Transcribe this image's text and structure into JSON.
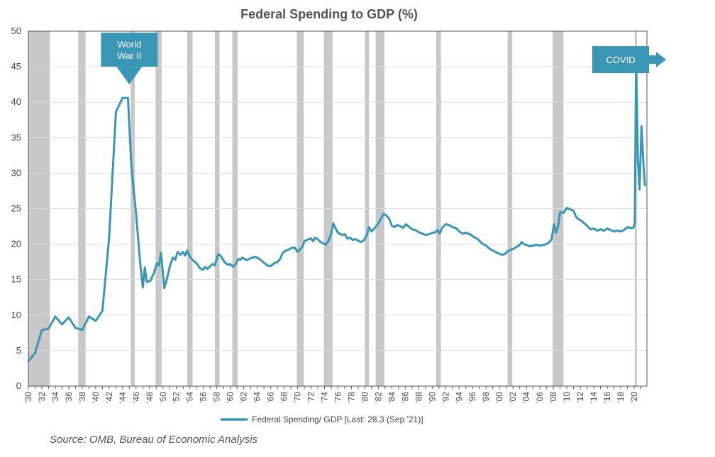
{
  "chart_data": {
    "type": "line",
    "title": "Federal Spending to GDP (%)",
    "xlabel": "",
    "ylabel": "",
    "xlim": [
      1930,
      2021.9
    ],
    "ylim": [
      0,
      50
    ],
    "yticks": [
      0,
      5,
      10,
      15,
      20,
      25,
      30,
      35,
      40,
      45,
      50
    ],
    "xtick_labels": [
      "'30",
      "'32",
      "'34",
      "'36",
      "'38",
      "'40",
      "'42",
      "'44",
      "'46",
      "'48",
      "'50",
      "'52",
      "'54",
      "'56",
      "'58",
      "'60",
      "'62",
      "'64",
      "'66",
      "'68",
      "'70",
      "'72",
      "'74",
      "'76",
      "'78",
      "'80",
      "'82",
      "'84",
      "'86",
      "'88",
      "'90",
      "'92",
      "'94",
      "'96",
      "'98",
      "'00",
      "'02",
      "'04",
      "'06",
      "'08",
      "'10",
      "'12",
      "'14",
      "'16",
      "'18",
      "'20"
    ],
    "grid": true,
    "legend_position": "bottom-center",
    "series": [
      {
        "name": "Federal Spending/ GDP [Last: 28.3 (Sep '21)]",
        "color": "#3a96b5",
        "points": [
          [
            1930,
            3.5
          ],
          [
            1931,
            4.7
          ],
          [
            1932,
            7.9
          ],
          [
            1933,
            8.1
          ],
          [
            1934,
            9.8
          ],
          [
            1935,
            8.7
          ],
          [
            1936,
            9.7
          ],
          [
            1937,
            8.2
          ],
          [
            1938,
            7.9
          ],
          [
            1939,
            9.8
          ],
          [
            1940,
            9.2
          ],
          [
            1941,
            10.6
          ],
          [
            1942,
            21.0
          ],
          [
            1943,
            38.6
          ],
          [
            1944,
            40.6
          ],
          [
            1944.8,
            40.6
          ],
          [
            1945.3,
            31.0
          ],
          [
            1946,
            24.3
          ],
          [
            1946.6,
            17.5
          ],
          [
            1947,
            13.9
          ],
          [
            1947.3,
            16.7
          ],
          [
            1947.6,
            14.7
          ],
          [
            1948.1,
            14.8
          ],
          [
            1948.6,
            15.8
          ],
          [
            1949.1,
            17.3
          ],
          [
            1949.4,
            17.0
          ],
          [
            1949.7,
            18.8
          ],
          [
            1950.2,
            13.8
          ],
          [
            1950.6,
            15.2
          ],
          [
            1951.1,
            17.2
          ],
          [
            1951.5,
            18.1
          ],
          [
            1951.8,
            17.8
          ],
          [
            1952.2,
            18.9
          ],
          [
            1952.6,
            18.5
          ],
          [
            1953,
            18.9
          ],
          [
            1953.3,
            18.4
          ],
          [
            1953.6,
            19.1
          ],
          [
            1954,
            18.2
          ],
          [
            1954.6,
            17.6
          ],
          [
            1955,
            17.3
          ],
          [
            1955.5,
            16.6
          ],
          [
            1955.9,
            16.4
          ],
          [
            1956.3,
            16.8
          ],
          [
            1956.6,
            16.5
          ],
          [
            1957,
            16.9
          ],
          [
            1957.4,
            17.2
          ],
          [
            1957.7,
            17.0
          ],
          [
            1958.2,
            18.6
          ],
          [
            1958.6,
            18.3
          ],
          [
            1959.2,
            17.4
          ],
          [
            1959.7,
            17.1
          ],
          [
            1960,
            17.2
          ],
          [
            1960.4,
            16.8
          ],
          [
            1960.8,
            17.2
          ],
          [
            1961.2,
            17.9
          ],
          [
            1961.5,
            17.8
          ],
          [
            1961.8,
            18.1
          ],
          [
            1962.3,
            17.8
          ],
          [
            1962.6,
            17.8
          ],
          [
            1963.2,
            18.1
          ],
          [
            1963.8,
            18.2
          ],
          [
            1964.5,
            17.8
          ],
          [
            1965,
            17.4
          ],
          [
            1965.5,
            17.0
          ],
          [
            1966,
            16.9
          ],
          [
            1966.5,
            17.3
          ],
          [
            1967,
            17.5
          ],
          [
            1967.4,
            17.9
          ],
          [
            1967.8,
            18.8
          ],
          [
            1968.3,
            19.1
          ],
          [
            1968.8,
            19.3
          ],
          [
            1969.2,
            19.5
          ],
          [
            1969.6,
            19.5
          ],
          [
            1970,
            18.9
          ],
          [
            1970.3,
            19.2
          ],
          [
            1970.7,
            19.6
          ],
          [
            1971,
            20.4
          ],
          [
            1971.4,
            20.6
          ],
          [
            1971.7,
            20.7
          ],
          [
            1972,
            20.8
          ],
          [
            1972.3,
            20.4
          ],
          [
            1972.6,
            20.9
          ],
          [
            1973,
            20.7
          ],
          [
            1973.4,
            20.3
          ],
          [
            1973.8,
            20.1
          ],
          [
            1974.2,
            19.9
          ],
          [
            1974.6,
            20.5
          ],
          [
            1975,
            21.5
          ],
          [
            1975.3,
            22.9
          ],
          [
            1975.6,
            22.3
          ],
          [
            1976,
            21.6
          ],
          [
            1976.6,
            21.3
          ],
          [
            1977,
            21.4
          ],
          [
            1977.4,
            20.8
          ],
          [
            1977.8,
            20.9
          ],
          [
            1978.2,
            20.6
          ],
          [
            1978.6,
            20.7
          ],
          [
            1979,
            20.5
          ],
          [
            1979.4,
            20.3
          ],
          [
            1979.8,
            20.5
          ],
          [
            1980.3,
            21.3
          ],
          [
            1980.6,
            22.4
          ],
          [
            1981,
            21.8
          ],
          [
            1981.5,
            22.3
          ],
          [
            1982,
            22.9
          ],
          [
            1982.5,
            23.8
          ],
          [
            1982.8,
            24.3
          ],
          [
            1983.2,
            24.0
          ],
          [
            1983.6,
            23.6
          ],
          [
            1984,
            22.6
          ],
          [
            1984.4,
            22.4
          ],
          [
            1984.8,
            22.7
          ],
          [
            1985.3,
            22.5
          ],
          [
            1985.7,
            22.3
          ],
          [
            1986.1,
            22.8
          ],
          [
            1986.5,
            22.5
          ],
          [
            1987,
            22.1
          ],
          [
            1987.5,
            22.0
          ],
          [
            1988,
            21.7
          ],
          [
            1988.5,
            21.5
          ],
          [
            1989,
            21.3
          ],
          [
            1989.5,
            21.4
          ],
          [
            1990,
            21.6
          ],
          [
            1990.5,
            21.7
          ],
          [
            1990.8,
            22.0
          ],
          [
            1991.1,
            21.5
          ],
          [
            1991.5,
            22.3
          ],
          [
            1992,
            22.8
          ],
          [
            1992.5,
            22.7
          ],
          [
            1993,
            22.4
          ],
          [
            1993.5,
            22.3
          ],
          [
            1994,
            21.8
          ],
          [
            1994.5,
            21.5
          ],
          [
            1995,
            21.6
          ],
          [
            1995.6,
            21.4
          ],
          [
            1996.2,
            21.0
          ],
          [
            1996.8,
            20.7
          ],
          [
            1997.4,
            20.1
          ],
          [
            1998,
            19.8
          ],
          [
            1998.6,
            19.3
          ],
          [
            1999.2,
            19.0
          ],
          [
            1999.8,
            18.7
          ],
          [
            2000.4,
            18.5
          ],
          [
            2000.8,
            18.6
          ],
          [
            2001.2,
            19.0
          ],
          [
            2001.6,
            19.2
          ],
          [
            2002,
            19.3
          ],
          [
            2002.5,
            19.6
          ],
          [
            2002.9,
            19.8
          ],
          [
            2003.3,
            20.3
          ],
          [
            2003.6,
            20.0
          ],
          [
            2004,
            19.9
          ],
          [
            2004.5,
            19.7
          ],
          [
            2005,
            19.8
          ],
          [
            2005.5,
            19.9
          ],
          [
            2006,
            19.8
          ],
          [
            2006.5,
            19.9
          ],
          [
            2007,
            20.0
          ],
          [
            2007.4,
            20.3
          ],
          [
            2007.7,
            20.6
          ],
          [
            2008.1,
            22.8
          ],
          [
            2008.4,
            21.6
          ],
          [
            2008.7,
            22.5
          ],
          [
            2009,
            24.5
          ],
          [
            2009.5,
            24.4
          ],
          [
            2010,
            25.1
          ],
          [
            2010.5,
            24.9
          ],
          [
            2011,
            24.7
          ],
          [
            2011.3,
            24.0
          ],
          [
            2011.6,
            23.6
          ],
          [
            2012,
            23.4
          ],
          [
            2012.5,
            23.0
          ],
          [
            2013,
            22.6
          ],
          [
            2013.5,
            22.1
          ],
          [
            2014,
            22.2
          ],
          [
            2014.5,
            21.9
          ],
          [
            2015,
            22.1
          ],
          [
            2015.5,
            21.9
          ],
          [
            2016,
            22.2
          ],
          [
            2016.5,
            22.0
          ],
          [
            2017,
            21.8
          ],
          [
            2017.5,
            21.9
          ],
          [
            2018,
            21.8
          ],
          [
            2018.5,
            22.0
          ],
          [
            2019,
            22.4
          ],
          [
            2019.5,
            22.3
          ],
          [
            2019.9,
            22.3
          ],
          [
            2020.1,
            23.0
          ],
          [
            2020.3,
            46.7
          ],
          [
            2020.55,
            32.0
          ],
          [
            2020.8,
            27.7
          ],
          [
            2021.1,
            36.6
          ],
          [
            2021.4,
            31.0
          ],
          [
            2021.6,
            28.3
          ]
        ]
      }
    ],
    "recessions": [
      [
        1930,
        1933.2
      ],
      [
        1937.4,
        1938.5
      ],
      [
        1945.2,
        1945.8
      ],
      [
        1948.9,
        1949.8
      ],
      [
        1953.6,
        1954.4
      ],
      [
        1957.7,
        1958.4
      ],
      [
        1960.3,
        1961.1
      ],
      [
        1969.9,
        1970.9
      ],
      [
        1973.9,
        1975.2
      ],
      [
        1980.0,
        1980.6
      ],
      [
        1981.6,
        1982.9
      ],
      [
        1990.6,
        1991.3
      ],
      [
        2001.2,
        2001.9
      ],
      [
        2007.9,
        2009.5
      ],
      [
        2020.1,
        2020.4
      ]
    ],
    "annotations": [
      {
        "text": [
          "World",
          "War II"
        ],
        "x": 1945,
        "y": 42,
        "direction": "down"
      },
      {
        "text": [
          "COVID"
        ],
        "x": 2018,
        "y": 46,
        "direction": "right"
      }
    ],
    "source": "Source:  OMB, Bureau of Economic Analysis"
  }
}
